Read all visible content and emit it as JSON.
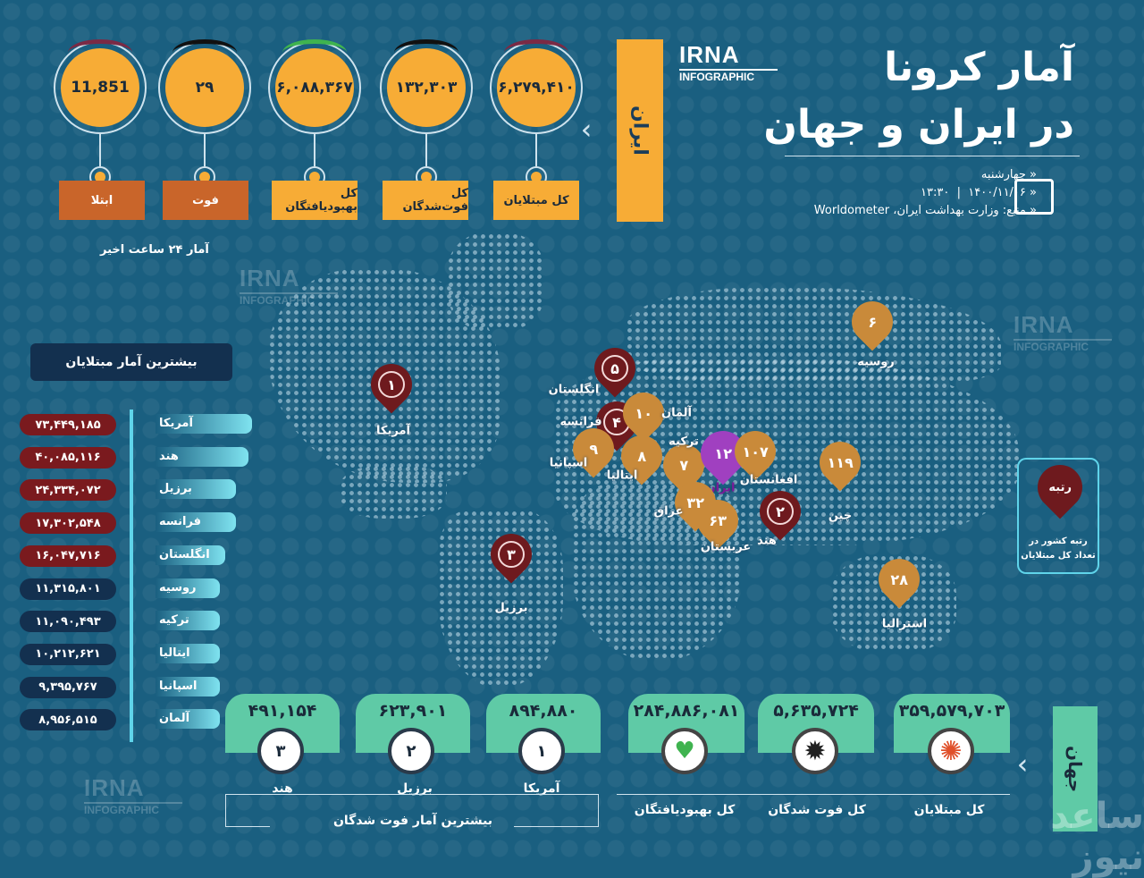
{
  "header": {
    "title_line1": "آمار کرونا",
    "title_line2": "در ایران و جهان",
    "weekday": "چهارشنبه",
    "date": "۱۴۰۰/۱۱/۰۶",
    "time": "۱۳:۳۰",
    "source": "منبع: وزارت بهداشت ایران، Worldometer",
    "logo_big": "IRNA",
    "logo_small": "INFOGRAPHIC"
  },
  "iran": {
    "label": "ایران",
    "stats": [
      {
        "label": "کل مبتلایان",
        "value": "۶,۲۷۹,۴۱۰",
        "arc": "#7a2a45"
      },
      {
        "label": "کل فوت‌شدگان",
        "value": "۱۳۲,۳۰۳",
        "arc": "#111111"
      },
      {
        "label": "کل بهبودیافتگان",
        "value": "۶,۰۸۸,۳۶۷",
        "arc": "#3fb34f"
      },
      {
        "label": "فوت",
        "value": "۲۹",
        "arc": "#111111"
      },
      {
        "label": "ابتلا",
        "value": "11,851",
        "arc": "#7a2a45"
      }
    ],
    "last24_label": "آمار ۲۴ ساعت اخیر"
  },
  "top_cases": {
    "title": "بیشترین آمار مبتلایان",
    "items": [
      {
        "country": "آمریکا",
        "value": "۷۳,۴۴۹,۱۸۵"
      },
      {
        "country": "هند",
        "value": "۴۰,۰۸۵,۱۱۶"
      },
      {
        "country": "برزیل",
        "value": "۲۴,۳۳۴,۰۷۲"
      },
      {
        "country": "فرانسه",
        "value": "۱۷,۳۰۲,۵۴۸"
      },
      {
        "country": "انگلستان",
        "value": "۱۶,۰۴۷,۷۱۶"
      },
      {
        "country": "روسیه",
        "value": "۱۱,۳۱۵,۸۰۱"
      },
      {
        "country": "ترکیه",
        "value": "۱۱,۰۹۰,۴۹۳"
      },
      {
        "country": "ایتالیا",
        "value": "۱۰,۲۱۲,۶۲۱"
      },
      {
        "country": "اسپانیا",
        "value": "۹,۳۹۵,۷۶۷"
      },
      {
        "country": "آلمان",
        "value": "۸,۹۵۶,۵۱۵"
      }
    ]
  },
  "map_pins": [
    {
      "country": "آمریکا",
      "rank": "۱",
      "color": "#6e1a1e"
    },
    {
      "country": "برزیل",
      "rank": "۳",
      "color": "#6e1a1e"
    },
    {
      "country": "انگلستان",
      "rank": "۵",
      "color": "#6e1a1e"
    },
    {
      "country": "فرانسه",
      "rank": "۴",
      "color": "#6e1a1e"
    },
    {
      "country": "آلمان",
      "rank": "۱۰",
      "color": "#c98a3a"
    },
    {
      "country": "اسپانیا",
      "rank": "۹",
      "color": "#c98a3a"
    },
    {
      "country": "ایتالیا",
      "rank": "۸",
      "color": "#c98a3a"
    },
    {
      "country": "ترکیه",
      "rank": "۷",
      "color": "#c98a3a"
    },
    {
      "country": "ایران",
      "rank": "۱۲",
      "color": "#a040c0"
    },
    {
      "country": "افغانستان",
      "rank": "۱۰۷",
      "color": "#c98a3a"
    },
    {
      "country": "عراق",
      "rank": "۳۲",
      "color": "#c98a3a"
    },
    {
      "country": "عربستان",
      "rank": "۶۳",
      "color": "#c98a3a"
    },
    {
      "country": "هند",
      "rank": "۲",
      "color": "#6e1a1e"
    },
    {
      "country": "چین",
      "rank": "۱۱۹",
      "color": "#c98a3a"
    },
    {
      "country": "روسیه",
      "rank": "۶",
      "color": "#c98a3a"
    },
    {
      "country": "استرالیا",
      "rank": "۲۸",
      "color": "#c98a3a"
    }
  ],
  "legend": {
    "pin_label": "رتبه",
    "text_line1": "رتبه کشور در",
    "text_line2": "تعداد کل مبتلایان"
  },
  "world": {
    "label": "جهان",
    "stats": [
      {
        "label": "کل مبتلایان",
        "value": "۳۵۹,۵۷۹,۷۰۳",
        "icon": "virus-red-icon"
      },
      {
        "label": "کل فوت شدگان",
        "value": "۵,۶۳۵,۷۲۴",
        "icon": "virus-black-icon"
      },
      {
        "label": "کل بهبودیافتگان",
        "value": "۲۸۴,۸۸۶,۰۸۱",
        "icon": "heart-pulse-icon"
      }
    ]
  },
  "top_deaths": {
    "title": "بیشترین آمار فوت شدگان",
    "items": [
      {
        "country": "آمریکا",
        "rank": "۱",
        "value": "۸۹۴,۸۸۰"
      },
      {
        "country": "برزیل",
        "rank": "۲",
        "value": "۶۲۳,۹۰۱"
      },
      {
        "country": "هند",
        "rank": "۳",
        "value": "۴۹۱,۱۵۴"
      }
    ]
  },
  "watermark": {
    "text": "ساعد نیوز"
  }
}
